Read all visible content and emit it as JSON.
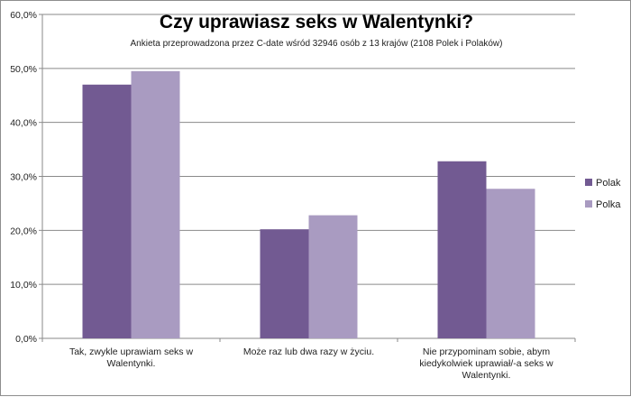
{
  "chart_data": {
    "type": "bar",
    "title": "Czy uprawiasz seks w Walentynki?",
    "subtitle": "Ankieta przeprowadzona przez C-date wśród 32946 osób z 13 krajów (2108 Polek i Polaków)",
    "categories": [
      [
        "Tak, zwykle uprawiam seks w",
        "Walentynki."
      ],
      [
        "Może raz lub dwa razy w życiu."
      ],
      [
        "Nie przypominam sobie, abym",
        "kiedykolwiek uprawiał/-a seks w",
        "Walentynki."
      ]
    ],
    "series": [
      {
        "name": "Polak",
        "values": [
          47.0,
          20.2,
          32.8
        ],
        "color": "#725a92"
      },
      {
        "name": "Polka",
        "values": [
          49.5,
          22.8,
          27.7
        ],
        "color": "#a99bc1"
      }
    ],
    "ylim": [
      0,
      60
    ],
    "yticks": [
      "0,0%",
      "10,0%",
      "20,0%",
      "30,0%",
      "40,0%",
      "50,0%",
      "60,0%"
    ],
    "grid": true,
    "legend": "right"
  }
}
